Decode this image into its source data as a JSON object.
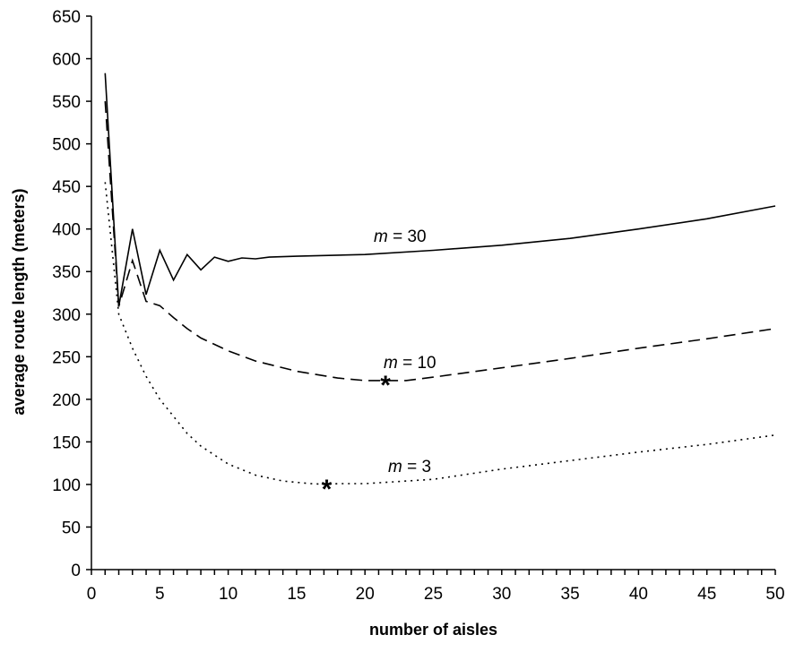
{
  "chart_data": {
    "type": "line",
    "title": "",
    "xlabel": "number of aisles",
    "ylabel": "average route length (meters)",
    "xlim": [
      0,
      50
    ],
    "ylim": [
      0,
      650
    ],
    "xticks": [
      0,
      5,
      10,
      15,
      20,
      25,
      30,
      35,
      40,
      45,
      50
    ],
    "yticks": [
      0,
      50,
      100,
      150,
      200,
      250,
      300,
      350,
      400,
      450,
      500,
      550,
      600,
      650
    ],
    "grid": false,
    "legend": "none",
    "series": [
      {
        "name": "m = 30",
        "label_var": "m",
        "label_rest": " = 30",
        "style": "solid",
        "x": [
          1,
          2,
          3,
          4,
          5,
          6,
          7,
          8,
          9,
          10,
          11,
          12,
          13,
          15,
          20,
          25,
          30,
          35,
          40,
          45,
          50
        ],
        "y": [
          583,
          309,
          400,
          323,
          375,
          340,
          370,
          352,
          367,
          362,
          366,
          365,
          367,
          368,
          370,
          375,
          381,
          389,
          400,
          412,
          427
        ]
      },
      {
        "name": "m = 10",
        "label_var": "m",
        "label_rest": " = 10",
        "style": "dashed",
        "x": [
          1,
          2,
          3,
          4,
          5,
          6,
          7,
          8,
          10,
          12,
          15,
          18,
          20,
          21.5,
          23,
          25,
          30,
          35,
          40,
          45,
          50
        ],
        "y": [
          550,
          309,
          363,
          315,
          310,
          296,
          283,
          272,
          257,
          245,
          233,
          225,
          222,
          222,
          222,
          226,
          237,
          248,
          260,
          271,
          283
        ],
        "marker": {
          "x": 21.5,
          "y": 222,
          "symbol": "*"
        }
      },
      {
        "name": "m = 3",
        "label_var": "m",
        "label_rest": " = 3",
        "style": "dotted",
        "x": [
          1,
          2,
          3,
          4,
          5,
          6,
          7,
          8,
          10,
          12,
          14,
          16,
          17.2,
          18,
          20,
          25,
          30,
          35,
          40,
          45,
          50
        ],
        "y": [
          455,
          300,
          260,
          227,
          200,
          180,
          160,
          145,
          124,
          111,
          104,
          101,
          100,
          101,
          101,
          106,
          118,
          128,
          138,
          147,
          158
        ],
        "marker": {
          "x": 17.2,
          "y": 100,
          "symbol": "*"
        }
      }
    ]
  }
}
